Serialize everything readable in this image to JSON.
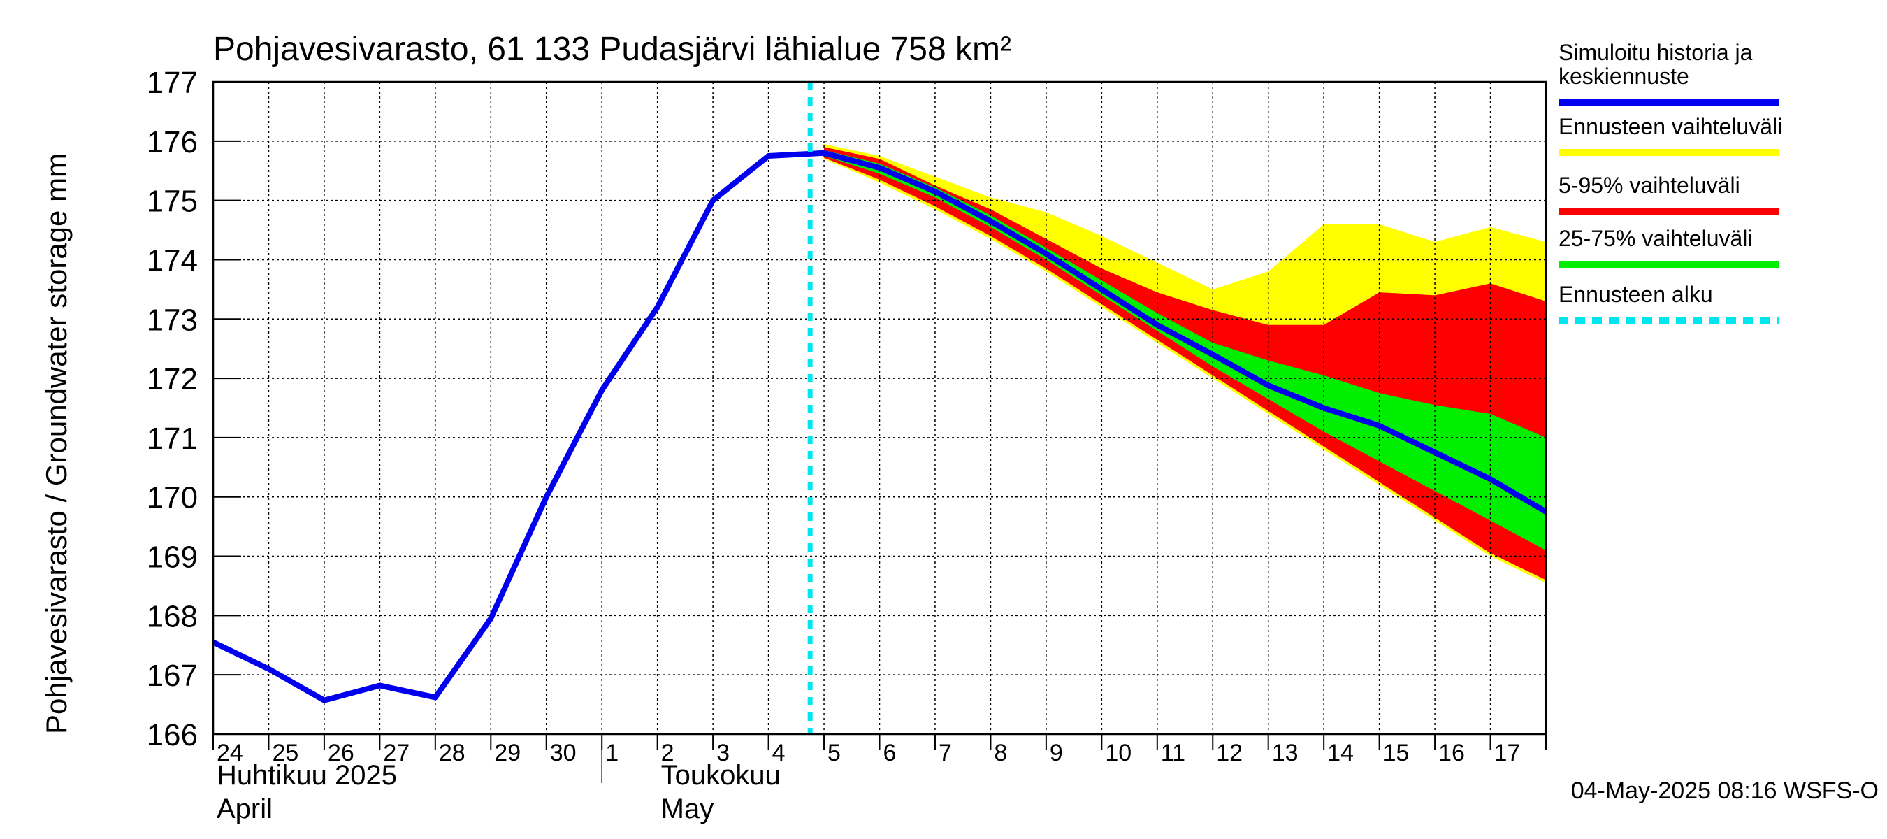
{
  "chart_data": {
    "type": "area",
    "title": "Pohjavesivarasto, 61 133 Pudasjärvi lähialue 758 km²",
    "ylabel": "Pohjavesivarasto / Groundwater storage   mm",
    "ylim": [
      166,
      177
    ],
    "yticks": [
      166,
      167,
      168,
      169,
      170,
      171,
      172,
      173,
      174,
      175,
      176,
      177
    ],
    "grid": true,
    "legend_position": "right",
    "x_tick_labels": [
      "24",
      "25",
      "26",
      "27",
      "28",
      "29",
      "30",
      "1",
      "2",
      "3",
      "4",
      "5",
      "6",
      "7",
      "8",
      "9",
      "10",
      "11",
      "12",
      "13",
      "14",
      "15",
      "16",
      "17"
    ],
    "month_labels": [
      {
        "line1": "Huhtikuu  2025",
        "line2": "April"
      },
      {
        "line1": "Toukokuu",
        "line2": "May"
      }
    ],
    "forecast_start_day": 10.75,
    "footer": "04-May-2025 08:16 WSFS-O",
    "legend": [
      {
        "label": "Simuloitu historia ja keskiennuste",
        "color": "#0000ee",
        "style": "solid"
      },
      {
        "label": "Ennusteen vaihteluväli",
        "color": "#ffff00",
        "style": "solid"
      },
      {
        "label": "5-95% vaihteluväli",
        "color": "#ff0000",
        "style": "solid"
      },
      {
        "label": "25-75% vaihteluväli",
        "color": "#00ee00",
        "style": "solid"
      },
      {
        "label": "Ennusteen alku",
        "color": "#00e5ee",
        "style": "dashed"
      }
    ],
    "series": [
      {
        "name": "Simuloitu historia ja keskiennuste",
        "x": [
          0,
          1,
          2,
          3,
          4,
          5,
          6,
          7,
          8,
          9,
          10,
          11,
          12,
          13,
          14,
          15,
          16,
          17,
          18,
          19,
          20,
          21,
          22,
          23,
          24
        ],
        "values": [
          167.55,
          167.1,
          166.57,
          166.82,
          166.62,
          167.95,
          170.0,
          171.8,
          173.2,
          175.0,
          175.75,
          175.8,
          175.55,
          175.15,
          174.65,
          174.1,
          173.5,
          172.9,
          172.4,
          171.88,
          171.5,
          171.2,
          170.75,
          170.3,
          169.75
        ]
      },
      {
        "name": "Ennusteen vaihteluväli",
        "x": [
          11,
          12,
          13,
          14,
          15,
          16,
          17,
          18,
          19,
          20,
          21,
          22,
          23,
          24
        ],
        "upper": [
          175.95,
          175.75,
          175.4,
          175.05,
          174.8,
          174.4,
          173.95,
          173.5,
          173.8,
          174.6,
          174.6,
          174.3,
          174.55,
          174.3
        ],
        "lower": [
          175.7,
          175.3,
          174.85,
          174.35,
          173.8,
          173.2,
          172.6,
          172.0,
          171.4,
          170.8,
          170.2,
          169.6,
          169.0,
          168.55
        ]
      },
      {
        "name": "5-95% vaihteluväli",
        "x": [
          11,
          12,
          13,
          14,
          15,
          16,
          17,
          18,
          19,
          20,
          21,
          22,
          23,
          24
        ],
        "upper": [
          175.9,
          175.7,
          175.25,
          174.85,
          174.35,
          173.85,
          173.45,
          173.15,
          172.9,
          172.9,
          173.45,
          173.4,
          173.6,
          173.3
        ],
        "lower": [
          175.72,
          175.35,
          174.9,
          174.4,
          173.85,
          173.25,
          172.65,
          172.05,
          171.45,
          170.85,
          170.25,
          169.65,
          169.05,
          168.6
        ]
      },
      {
        "name": "25-75% vaihteluväli",
        "x": [
          11,
          12,
          13,
          14,
          15,
          16,
          17,
          18,
          19,
          20,
          21,
          22,
          23,
          24
        ],
        "upper": [
          175.85,
          175.62,
          175.22,
          174.75,
          174.2,
          173.65,
          173.1,
          172.6,
          172.3,
          172.05,
          171.75,
          171.55,
          171.4,
          171.0
        ],
        "lower": [
          175.75,
          175.45,
          175.05,
          174.55,
          174.0,
          173.4,
          172.8,
          172.2,
          171.65,
          171.1,
          170.6,
          170.1,
          169.6,
          169.1
        ]
      }
    ]
  }
}
